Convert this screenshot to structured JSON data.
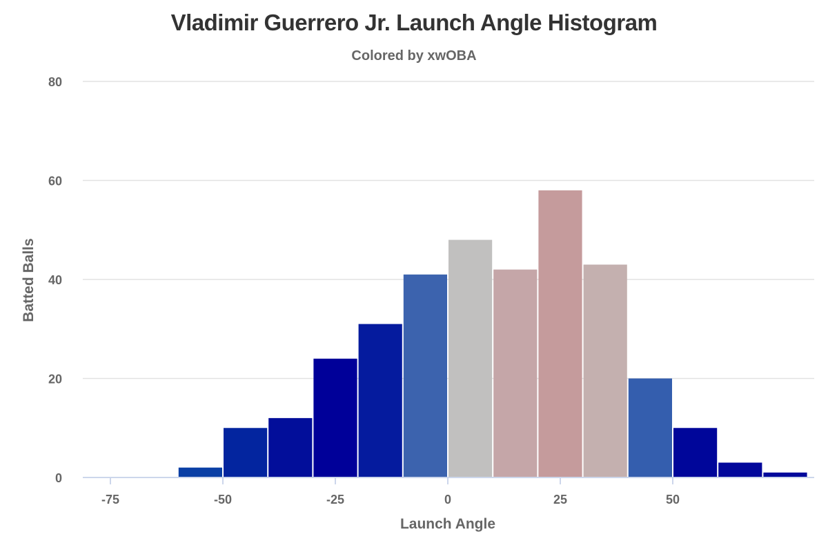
{
  "chart_data": {
    "type": "bar",
    "title": "Vladimir Guerrero Jr. Launch Angle Histogram",
    "subtitle": "Colored by xwOBA",
    "xlabel": "Launch Angle",
    "ylabel": "Batted Balls",
    "xlim": [
      -80,
      80
    ],
    "ylim": [
      0,
      80
    ],
    "xticks": [
      -75,
      -50,
      -25,
      0,
      25,
      50
    ],
    "yticks": [
      0,
      20,
      40,
      60,
      80
    ],
    "grid": "horizontal",
    "bin_width": 10,
    "bins": [
      {
        "start": -80,
        "end": -70,
        "value": 0,
        "color": "#0033a0"
      },
      {
        "start": -70,
        "end": -60,
        "value": 0,
        "color": "#0033a0"
      },
      {
        "start": -60,
        "end": -50,
        "value": 2,
        "color": "#0a3fa5"
      },
      {
        "start": -50,
        "end": -40,
        "value": 10,
        "color": "#03259f"
      },
      {
        "start": -40,
        "end": -30,
        "value": 12,
        "color": "#020e9a"
      },
      {
        "start": -30,
        "end": -20,
        "value": 24,
        "color": "#000099"
      },
      {
        "start": -20,
        "end": -10,
        "value": 31,
        "color": "#051b9e"
      },
      {
        "start": -10,
        "end": 0,
        "value": 41,
        "color": "#3c63ae"
      },
      {
        "start": 0,
        "end": 10,
        "value": 48,
        "color": "#c1c0bf"
      },
      {
        "start": 10,
        "end": 20,
        "value": 42,
        "color": "#c5a6a8"
      },
      {
        "start": 20,
        "end": 30,
        "value": 58,
        "color": "#c59b9c"
      },
      {
        "start": 30,
        "end": 40,
        "value": 43,
        "color": "#c4b0af"
      },
      {
        "start": 40,
        "end": 50,
        "value": 20,
        "color": "#345eae"
      },
      {
        "start": 50,
        "end": 60,
        "value": 10,
        "color": "#00069a"
      },
      {
        "start": 60,
        "end": 70,
        "value": 3,
        "color": "#02079b"
      },
      {
        "start": 70,
        "end": 80,
        "value": 1,
        "color": "#010a9b"
      }
    ]
  }
}
